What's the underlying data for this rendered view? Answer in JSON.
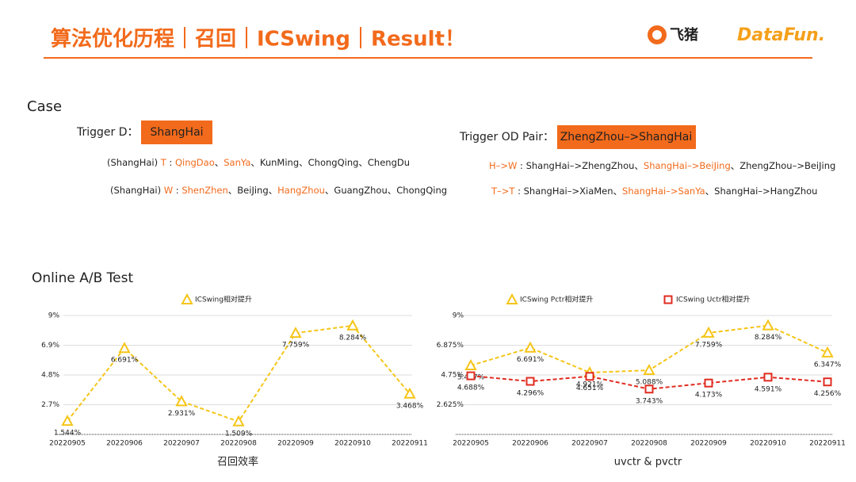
{
  "header": {
    "title": "算法优化历程｜召回｜ICSwing｜Result！",
    "logos": [
      "飞猪",
      "DataFun."
    ]
  },
  "case": {
    "title": "Case",
    "highlight_color": "#f26a1b",
    "trigger_d_label": "Trigger D：",
    "trigger_d": "ShangHai",
    "trigger_od_label": "Trigger OD Pair：",
    "trigger_od": "ZhengZhou–>ShangHai",
    "left_lines": [
      {
        "parts": [
          {
            "text": "(ShangHai) "
          },
          {
            "text": "T",
            "highlight": true
          },
          {
            "text": " : "
          },
          {
            "text": "QingDao",
            "highlight": true
          },
          {
            "text": "、"
          },
          {
            "text": "SanYa",
            "highlight": true
          },
          {
            "text": "、KunMing、ChongQing、ChengDu"
          }
        ]
      },
      {
        "parts": [
          {
            "text": "(ShangHai) "
          },
          {
            "text": "W",
            "highlight": true
          },
          {
            "text": " : "
          },
          {
            "text": "ShenZhen",
            "highlight": true
          },
          {
            "text": "、BeiJing、"
          },
          {
            "text": "HangZhou",
            "highlight": true
          },
          {
            "text": "、GuangZhou、ChongQing"
          }
        ]
      }
    ],
    "right_lines": [
      {
        "parts": [
          {
            "text": "H–>W",
            "highlight": true
          },
          {
            "text": " : ShangHai–>ZhengZhou、"
          },
          {
            "text": "ShangHai–>BeiJing",
            "highlight": true
          },
          {
            "text": "、ZhengZhou–>BeiJing"
          }
        ]
      },
      {
        "parts": [
          {
            "text": "T–>T",
            "highlight": true
          },
          {
            "text": " : ShangHai–>XiaMen、"
          },
          {
            "text": "ShangHai–>SanYa",
            "highlight": true
          },
          {
            "text": "、ShangHai–>HangZhou"
          }
        ]
      }
    ]
  },
  "section_title": "Online A/B Test",
  "chart_data": [
    {
      "type": "line",
      "x_label": "召回效率",
      "categories": [
        "20220905",
        "20220906",
        "20220907",
        "20220908",
        "20220909",
        "20220910",
        "20220911"
      ],
      "ylim": [
        0.6,
        9
      ],
      "yticks": [
        {
          "value": 2.7,
          "label": "2.7%"
        },
        {
          "value": 4.8,
          "label": "4.8%"
        },
        {
          "value": 6.9,
          "label": "6.9%"
        },
        {
          "value": 9,
          "label": "9%"
        }
      ],
      "grid": true,
      "series": [
        {
          "name": "ICSwing相对提升",
          "color": "#f5c518",
          "marker": "triangle",
          "line_style": "dashed",
          "values": [
            1.544,
            6.691,
            2.931,
            1.509,
            7.759,
            8.284,
            3.468
          ],
          "value_labels": [
            "1.544%",
            "6.691%",
            "2.931%",
            "1.509%",
            "7.759%",
            "8.284%",
            "3.468%"
          ]
        }
      ]
    },
    {
      "type": "line",
      "x_label": "uvctr & pvctr",
      "categories": [
        "20220905",
        "20220906",
        "20220907",
        "20220908",
        "20220909",
        "20220910",
        "20220911"
      ],
      "ylim": [
        0.5,
        9
      ],
      "yticks": [
        {
          "value": 2.625,
          "label": "2.625%"
        },
        {
          "value": 4.75,
          "label": "4.75%"
        },
        {
          "value": 6.875,
          "label": "6.875%"
        },
        {
          "value": 9,
          "label": "9%"
        }
      ],
      "grid": true,
      "series": [
        {
          "name": "ICSwing Pctr相对提升",
          "color": "#f5c518",
          "marker": "triangle",
          "line_style": "dashed",
          "values": [
            5.427,
            6.691,
            4.921,
            5.088,
            7.759,
            8.284,
            6.347
          ],
          "value_labels": [
            "5.427%",
            "6.691%",
            "4.921%",
            "5.088%",
            "7.759%",
            "8.284%",
            "6.347%"
          ]
        },
        {
          "name": "ICSwing Uctr相对提升",
          "color": "#e02b20",
          "marker": "square",
          "line_style": "dashed",
          "values": [
            4.688,
            4.296,
            4.651,
            3.743,
            4.173,
            4.591,
            4.256
          ],
          "value_labels": [
            "4.688%",
            "4.296%",
            "4.651%",
            "3.743%",
            "4.173%",
            "4.591%",
            "4.256%"
          ]
        }
      ]
    }
  ]
}
